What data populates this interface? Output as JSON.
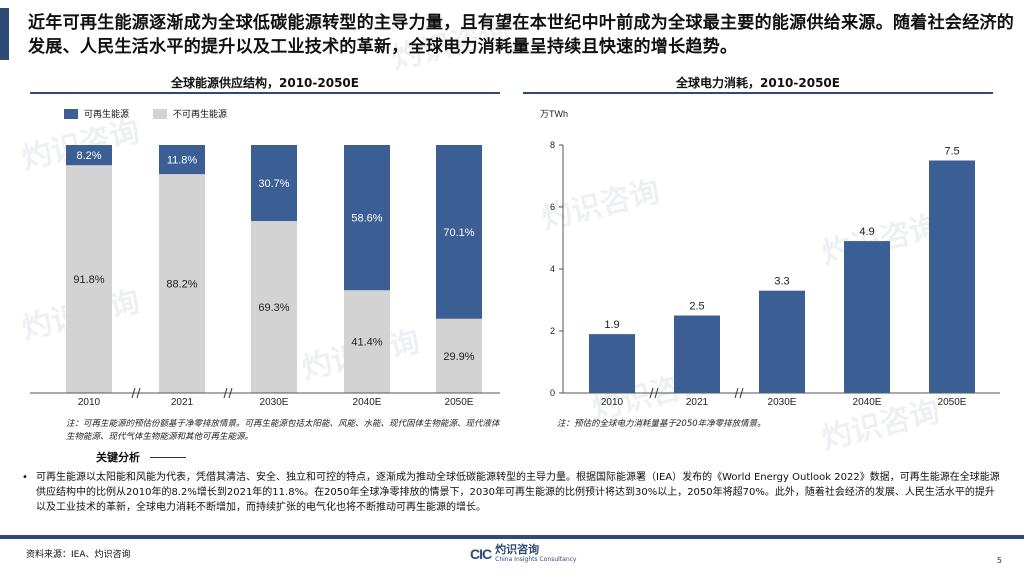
{
  "headline": "近年可再生能源逐渐成为全球低碳能源转型的主导力量，且有望在本世纪中叶前成为全球最主要的能源供给来源。随着社会经济的发展、人民生活水平的提升以及工业技术的革新，全球电力消耗量呈持续且快速的增长趋势。",
  "left_chart_title": "全球能源供应结构，2010-2050E",
  "right_chart_title": "全球电力消耗，2010-2050E",
  "legend": {
    "renewable": "可再生能源",
    "nonrenewable": "不可再生能源"
  },
  "right_unit": "万TWh",
  "colors": {
    "accent": "#2e4a75",
    "renewable": "#3b5e95",
    "nonrenewable": "#d3d3d3",
    "bar": "#3b5e95"
  },
  "chart_data": [
    {
      "type": "bar",
      "stacked": true,
      "title": "全球能源供应结构，2010-2050E",
      "categories": [
        "2010",
        "2021",
        "2030E",
        "2040E",
        "2050E"
      ],
      "series": [
        {
          "name": "可再生能源",
          "values": [
            8.2,
            11.8,
            30.7,
            58.6,
            70.1
          ]
        },
        {
          "name": "不可再生能源",
          "values": [
            91.8,
            88.2,
            69.3,
            41.4,
            29.9
          ]
        }
      ],
      "value_labels": {
        "renewable": [
          "8.2%",
          "11.8%",
          "30.7%",
          "58.6%",
          "70.1%"
        ],
        "nonrenewable": [
          "91.8%",
          "88.2%",
          "69.3%",
          "41.4%",
          "29.9%"
        ]
      },
      "ylim": [
        0,
        100
      ],
      "axis_break": true,
      "legend_position": "top-left"
    },
    {
      "type": "bar",
      "title": "全球电力消耗，2010-2050E",
      "categories": [
        "2010",
        "2021",
        "2030E",
        "2040E",
        "2050E"
      ],
      "values": [
        1.9,
        2.5,
        3.3,
        4.9,
        7.5
      ],
      "value_labels": [
        "1.9",
        "2.5",
        "3.3",
        "4.9",
        "7.5"
      ],
      "ylabel": "万TWh",
      "ylim": [
        0,
        8
      ],
      "yticks": [
        "0",
        "2",
        "4",
        "6",
        "8"
      ],
      "axis_break": true
    }
  ],
  "left_note": "注：可再生能源的预估份额基于净零排放情景。可再生能源包括太阳能、风能、水能、现代固体生物能源、现代液体生物能源、现代气体生物能源和其他可再生能源。",
  "right_note": "注：预估的全球电力消耗量基于2050年净零排放情景。",
  "analysis_title": "关键分析",
  "analysis_text": "可再生能源以太阳能和风能为代表，凭借其清洁、安全、独立和可控的特点，逐渐成为推动全球低碳能源转型的主导力量。根据国际能源署（IEA）发布的《World Energy Outlook 2022》数据，可再生能源在全球能源供应结构中的比例从2010年的8.2%增长到2021年的11.8%。在2050年全球净零排放的情景下，2030年可再生能源的比例预计将达到30%以上，2050年将超70%。此外，随着社会经济的发展、人民生活水平的提升以及工业技术的革新，全球电力消耗不断增加，而持续扩张的电气化也将不断推动可再生能源的增长。",
  "source": "资料来源：IEA、灼识咨询",
  "logo": {
    "mark": "CIC",
    "cn": "灼识咨询",
    "en": "China Insights Consultancy"
  },
  "page_number": "5",
  "watermark": {
    "cn": "灼识咨询",
    "en": "China Insights Consultancy",
    "mark": "CIC"
  }
}
